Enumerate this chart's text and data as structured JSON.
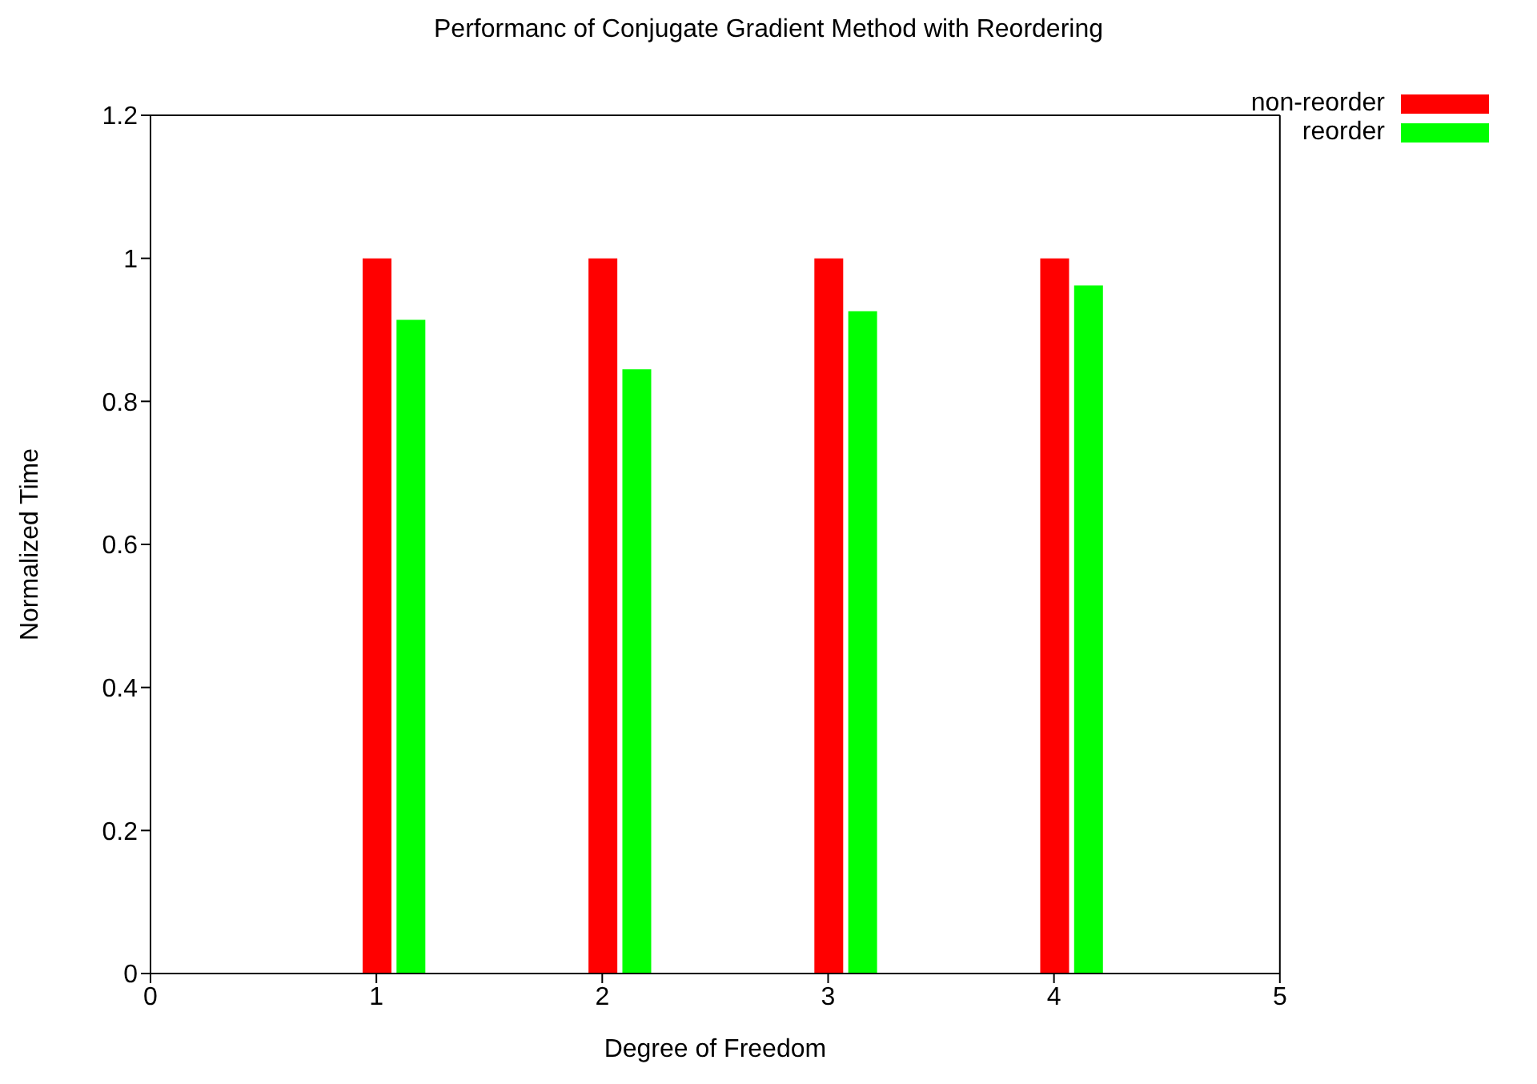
{
  "chart_data": {
    "type": "bar",
    "title": "Performanc of Conjugate Gradient Method with Reordering",
    "xlabel": "Degree of Freedom",
    "ylabel": "Normalized Time",
    "series": [
      {
        "name": "non-reorder",
        "color": "#ff0000",
        "x": [
          1,
          2,
          3,
          4
        ],
        "values": [
          1,
          1,
          1,
          1
        ]
      },
      {
        "name": "reorder",
        "color": "#00ff00",
        "x": [
          1.15,
          2.15,
          3.15,
          4.15
        ],
        "values": [
          0.914,
          0.845,
          0.926,
          0.962
        ]
      }
    ],
    "xlim": [
      0,
      5
    ],
    "xticks": [
      0,
      1,
      2,
      3,
      4,
      5
    ],
    "ylim": [
      0,
      1.2
    ],
    "yticks": [
      0,
      0.2,
      0.4,
      0.6,
      0.8,
      1,
      1.2
    ],
    "grid": false,
    "legend": "top right"
  }
}
